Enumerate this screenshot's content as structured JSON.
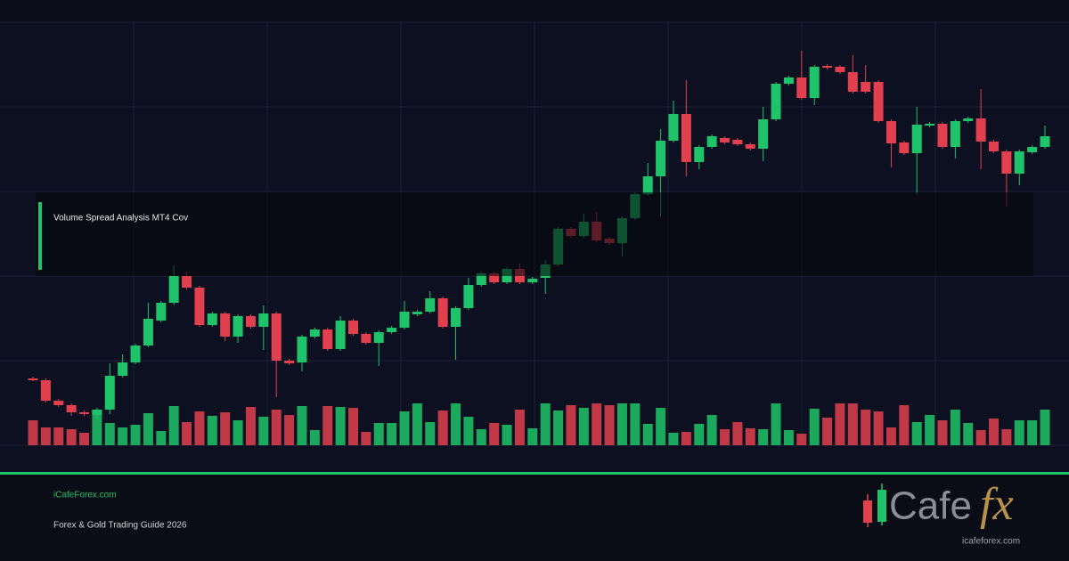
{
  "chart_data": {
    "type": "candlestick",
    "title": "Volume Spread Analysis MT4 Cov",
    "up_color": "#1fc46a",
    "down_color": "#e2404f",
    "grid": true,
    "ylim": [
      0,
      475
    ],
    "yticks": [
      0,
      95,
      190,
      285,
      380,
      475
    ],
    "open": [
      75,
      73,
      50,
      45,
      37,
      34,
      40,
      78,
      93,
      112,
      140,
      160,
      190,
      177,
      135,
      148,
      122,
      145,
      133,
      148,
      95,
      93,
      122,
      130,
      108,
      140,
      125,
      115,
      127,
      132,
      147,
      150,
      165,
      133,
      154,
      180,
      193,
      183,
      198,
      183,
      188,
      203,
      243,
      235,
      251,
      232,
      227,
      255,
      282,
      302,
      342,
      372,
      318,
      335,
      345,
      343,
      338,
      333,
      366,
      406,
      413,
      390,
      426,
      425,
      419,
      408,
      408,
      364,
      340,
      328,
      359,
      361,
      335,
      364,
      367,
      341,
      330,
      305,
      329,
      335
    ],
    "high": [
      77,
      75,
      52,
      47,
      39,
      42,
      92,
      102,
      114,
      160,
      162,
      202,
      195,
      179,
      150,
      150,
      147,
      147,
      157,
      150,
      97,
      124,
      132,
      132,
      145,
      142,
      127,
      129,
      134,
      162,
      152,
      173,
      167,
      156,
      188,
      195,
      195,
      200,
      204,
      189,
      208,
      245,
      245,
      260,
      262,
      234,
      257,
      284,
      317,
      355,
      387,
      410,
      337,
      349,
      347,
      345,
      340,
      380,
      408,
      415,
      443,
      427,
      428,
      427,
      438,
      427,
      410,
      366,
      342,
      380,
      363,
      363,
      366,
      369,
      400,
      343,
      332,
      332,
      337,
      359
    ],
    "low": [
      72,
      48,
      43,
      33,
      33,
      30,
      35,
      76,
      91,
      110,
      138,
      158,
      175,
      133,
      133,
      117,
      115,
      131,
      107,
      54,
      90,
      83,
      120,
      106,
      106,
      123,
      113,
      89,
      125,
      130,
      145,
      148,
      131,
      96,
      152,
      178,
      181,
      181,
      181,
      181,
      170,
      201,
      233,
      233,
      228,
      225,
      212,
      253,
      280,
      257,
      340,
      302,
      310,
      333,
      338,
      336,
      331,
      319,
      364,
      404,
      388,
      382,
      422,
      417,
      395,
      395,
      362,
      312,
      326,
      282,
      357,
      333,
      322,
      362,
      310,
      328,
      268,
      292,
      327,
      333
    ],
    "close": [
      73,
      50,
      45,
      37,
      35,
      40,
      78,
      93,
      112,
      142,
      160,
      190,
      177,
      135,
      148,
      122,
      145,
      133,
      148,
      95,
      92,
      122,
      130,
      108,
      140,
      125,
      115,
      127,
      132,
      150,
      150,
      165,
      133,
      154,
      180,
      193,
      183,
      198,
      183,
      187,
      203,
      243,
      235,
      251,
      230,
      227,
      255,
      282,
      302,
      342,
      372,
      318,
      335,
      347,
      340,
      338,
      333,
      366,
      406,
      413,
      390,
      425,
      424,
      419,
      397,
      397,
      364,
      339,
      328,
      360,
      361,
      335,
      364,
      367,
      341,
      330,
      305,
      330,
      335,
      347
    ],
    "volume": [
      28,
      20,
      20,
      18,
      14,
      40,
      25,
      20,
      23,
      36,
      16,
      44,
      26,
      38,
      33,
      37,
      28,
      43,
      32,
      40,
      34,
      44,
      17,
      44,
      43,
      42,
      15,
      25,
      25,
      38,
      47,
      26,
      39,
      47,
      32,
      18,
      25,
      23,
      40,
      19,
      47,
      39,
      45,
      42,
      47,
      45,
      47,
      47,
      24,
      42,
      14,
      15,
      24,
      34,
      18,
      26,
      19,
      18,
      47,
      17,
      13,
      41,
      31,
      47,
      47,
      40,
      38,
      20,
      45,
      26,
      34,
      28,
      40,
      25,
      17,
      30,
      18,
      28,
      28,
      40
    ]
  },
  "footer": {
    "site": "iCafeForex.com",
    "tagline": "Forex & Gold Trading Guide 2026"
  },
  "logo": {
    "word": "Cafe",
    "accent": "fx",
    "url": "icafeforex.com"
  }
}
